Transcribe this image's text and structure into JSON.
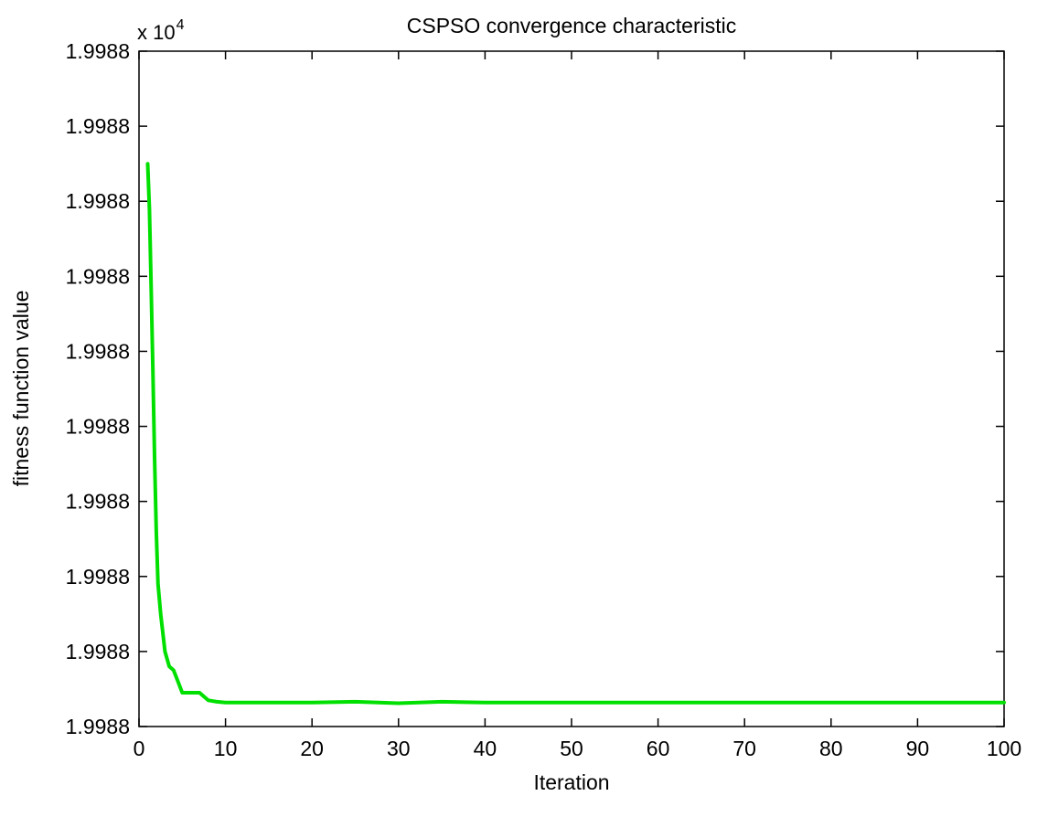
{
  "chart_data": {
    "type": "line",
    "title": "CSPSO convergence characteristic",
    "xlabel": "Iteration",
    "ylabel": "fitness function value",
    "y_scale_factor": {
      "base": "x 10",
      "exponent": "4"
    },
    "xlim": [
      0,
      100
    ],
    "ylim": [
      0,
      9
    ],
    "y_note": "raw y axis (exponent-scaled values) differ only beyond displayed precision; y values expressed as tick-step units above the bottom tick",
    "xticks": [
      0,
      10,
      20,
      30,
      40,
      50,
      60,
      70,
      80,
      90,
      100
    ],
    "xtick_labels": [
      "0",
      "10",
      "20",
      "30",
      "40",
      "50",
      "60",
      "70",
      "80",
      "90",
      "100"
    ],
    "yticks": [
      0,
      1,
      2,
      3,
      4,
      5,
      6,
      7,
      8,
      9
    ],
    "ytick_labels": [
      "1.9988",
      "1.9988",
      "1.9988",
      "1.9988",
      "1.9988",
      "1.9988",
      "1.9988",
      "1.9988",
      "1.9988",
      "1.9988"
    ],
    "grid": false,
    "series": [
      {
        "color": "#00e000",
        "x": [
          1,
          1.2,
          1.4,
          1.6,
          1.8,
          2,
          2.2,
          2.5,
          3,
          3.5,
          4,
          4.5,
          5,
          6,
          7,
          8,
          9,
          10,
          15,
          20,
          25,
          30,
          35,
          40,
          50,
          60,
          70,
          80,
          90,
          100
        ],
        "y": [
          7.5,
          6.9,
          5.9,
          4.8,
          3.6,
          2.6,
          1.9,
          1.5,
          1.0,
          0.8,
          0.75,
          0.6,
          0.45,
          0.45,
          0.45,
          0.35,
          0.33,
          0.32,
          0.32,
          0.32,
          0.33,
          0.31,
          0.33,
          0.32,
          0.32,
          0.32,
          0.32,
          0.32,
          0.32,
          0.32
        ]
      }
    ]
  }
}
